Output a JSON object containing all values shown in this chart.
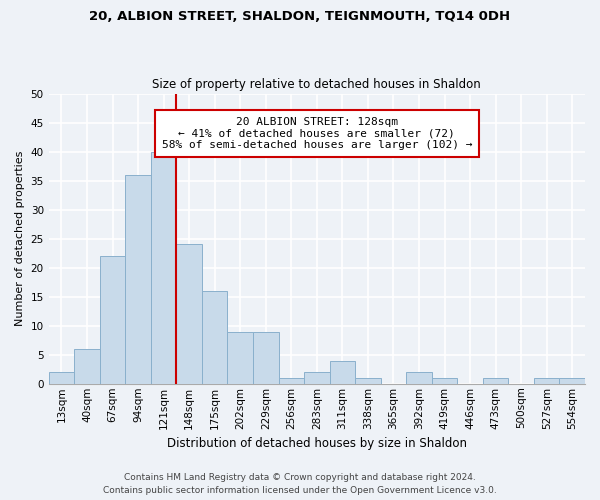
{
  "title": "20, ALBION STREET, SHALDON, TEIGNMOUTH, TQ14 0DH",
  "subtitle": "Size of property relative to detached houses in Shaldon",
  "xlabel": "Distribution of detached houses by size in Shaldon",
  "ylabel": "Number of detached properties",
  "bin_labels": [
    "13sqm",
    "40sqm",
    "67sqm",
    "94sqm",
    "121sqm",
    "148sqm",
    "175sqm",
    "202sqm",
    "229sqm",
    "256sqm",
    "283sqm",
    "311sqm",
    "338sqm",
    "365sqm",
    "392sqm",
    "419sqm",
    "446sqm",
    "473sqm",
    "500sqm",
    "527sqm",
    "554sqm"
  ],
  "bar_heights": [
    2,
    6,
    22,
    36,
    40,
    24,
    16,
    9,
    9,
    1,
    2,
    4,
    1,
    0,
    2,
    1,
    0,
    1,
    0,
    1,
    1
  ],
  "bar_color": "#c8daea",
  "bar_edge_color": "#8ab0cc",
  "vline_x_index": 4,
  "vline_color": "#cc0000",
  "annotation_title": "20 ALBION STREET: 128sqm",
  "annotation_line1": "← 41% of detached houses are smaller (72)",
  "annotation_line2": "58% of semi-detached houses are larger (102) →",
  "annotation_box_color": "#ffffff",
  "annotation_box_edge": "#cc0000",
  "ylim": [
    0,
    50
  ],
  "yticks": [
    0,
    5,
    10,
    15,
    20,
    25,
    30,
    35,
    40,
    45,
    50
  ],
  "footnote1": "Contains HM Land Registry data © Crown copyright and database right 2024.",
  "footnote2": "Contains public sector information licensed under the Open Government Licence v3.0.",
  "bg_color": "#eef2f7",
  "grid_color": "#ffffff",
  "title_fontsize": 9.5,
  "subtitle_fontsize": 8.5,
  "xlabel_fontsize": 8.5,
  "ylabel_fontsize": 8,
  "tick_fontsize": 7.5,
  "annotation_fontsize": 8,
  "footnote_fontsize": 6.5
}
